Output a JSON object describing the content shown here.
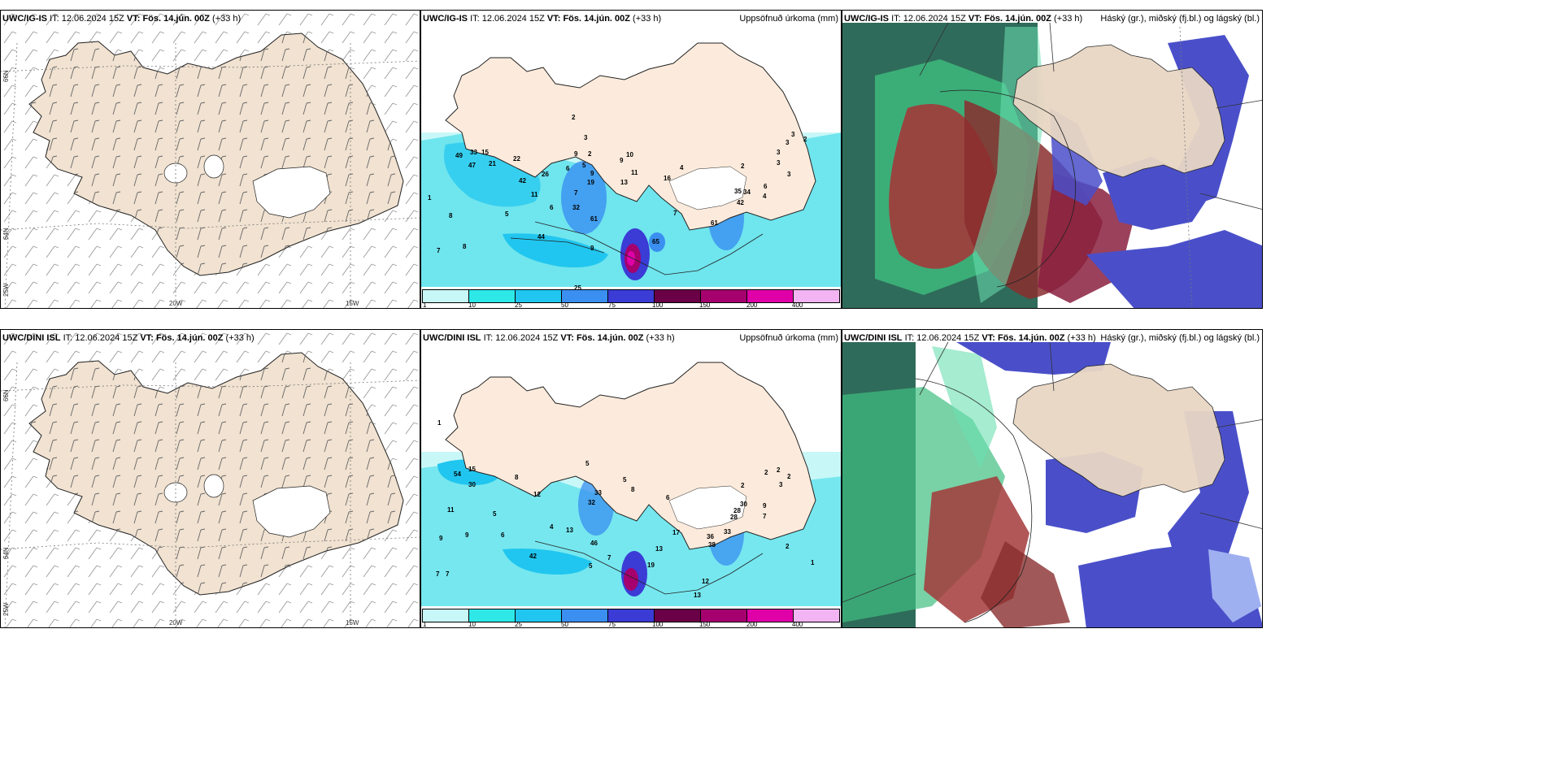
{
  "rows": [
    {
      "model": "UWC/IG-IS",
      "it_label": "IT:",
      "it_value": "12.06.2024 15Z",
      "vt_label": "VT:",
      "vt_value": "Fös. 14.jún. 00Z",
      "lead": "(+33 h)",
      "precip_values": [
        "2",
        "3",
        "9",
        "2",
        "10",
        "6",
        "5",
        "9",
        "11",
        "16",
        "4",
        "2",
        "3",
        "2",
        "3",
        "3",
        "3",
        "3",
        "6",
        "4",
        "49",
        "33",
        "15",
        "47",
        "21",
        "22",
        "42",
        "26",
        "19",
        "9",
        "7",
        "11",
        "13",
        "32",
        "6",
        "8",
        "5",
        "61",
        "44",
        "9",
        "65",
        "8",
        "7",
        "8",
        "1",
        "25",
        "7",
        "35",
        "61",
        "42",
        "34"
      ]
    },
    {
      "model": "UWC/DINI ISL",
      "it_label": "IT:",
      "it_value": "12.06.2024 15Z",
      "vt_label": "VT:",
      "vt_value": "Fös. 14.jún. 00Z",
      "lead": "(+33 h)",
      "precip_values": [
        "1",
        "5",
        "54",
        "15",
        "30",
        "8",
        "11",
        "12",
        "5",
        "6",
        "4",
        "9",
        "9",
        "33",
        "32",
        "13",
        "46",
        "6",
        "5",
        "8",
        "2",
        "2",
        "2",
        "2",
        "3",
        "9",
        "7",
        "30",
        "28",
        "36",
        "38",
        "33",
        "19",
        "13",
        "12",
        "13",
        "2",
        "1",
        "42",
        "5",
        "7",
        "7",
        "7",
        "17",
        "28"
      ]
    }
  ],
  "precip_title": "Uppsöfnuð úrkoma (mm)",
  "cloud_title": "Háský (gr.), miðský (fj.bl.) og lágský (bl.)",
  "legend_ticks": [
    "1",
    "10",
    "25",
    "50",
    "75",
    "100",
    "150",
    "200",
    "400"
  ],
  "legend_colors": [
    "#c8f7f7",
    "#2ee8e8",
    "#20c6ef",
    "#3a8ff0",
    "#3b3bd6",
    "#6a0046",
    "#a5006e",
    "#e000a8",
    "#f2b4f2"
  ],
  "axis": {
    "lat_66": "66N",
    "lat_64": "64N",
    "lon_25": "25W",
    "lon_20": "20W",
    "lon_15": "15W"
  },
  "colors": {
    "land": "#f1e2d1",
    "precip_light": "#c8f7f7",
    "precip_mid": "#3fdcea",
    "cloud_high": "#2f6b5a",
    "cloud_mid": "#a33a3a",
    "cloud_low": "#4a4fc9"
  }
}
